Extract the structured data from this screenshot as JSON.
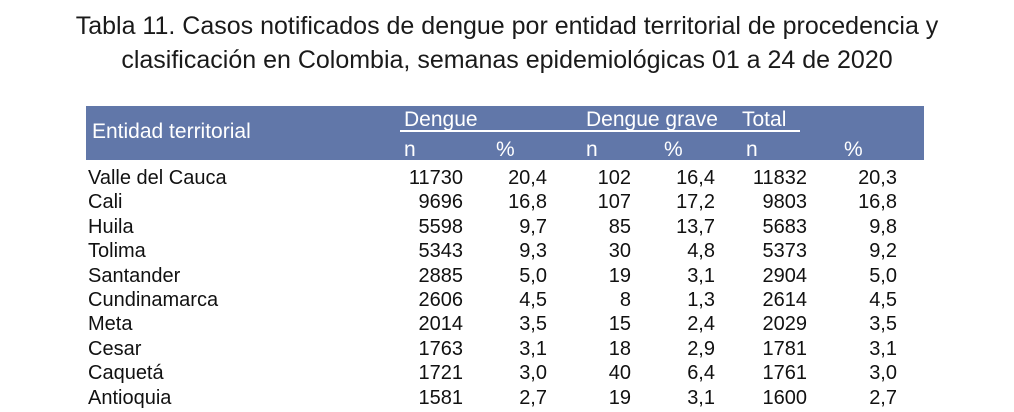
{
  "title": {
    "line1": "Tabla 11. Casos notificados de dengue por entidad territorial de procedencia y",
    "line2": "clasificación en Colombia, semanas epidemiológicas 01 a 24 de 2020"
  },
  "header": {
    "entity": "Entidad territorial",
    "dengue": "Dengue",
    "dengue_grave": "Dengue grave",
    "total": "Total",
    "n": "n",
    "pct": "%"
  },
  "rows": [
    [
      "Valle del Cauca",
      "11730",
      "20,4",
      "102",
      "16,4",
      "11832",
      "20,3"
    ],
    [
      "Cali",
      "9696",
      "16,8",
      "107",
      "17,2",
      "9803",
      "16,8"
    ],
    [
      "Huila",
      "5598",
      "9,7",
      "85",
      "13,7",
      "5683",
      "9,8"
    ],
    [
      "Tolima",
      "5343",
      "9,3",
      "30",
      "4,8",
      "5373",
      "9,2"
    ],
    [
      "Santander",
      "2885",
      "5,0",
      "19",
      "3,1",
      "2904",
      "5,0"
    ],
    [
      "Cundinamarca",
      "2606",
      "4,5",
      "8",
      "1,3",
      "2614",
      "4,5"
    ],
    [
      "Meta",
      "2014",
      "3,5",
      "15",
      "2,4",
      "2029",
      "3,5"
    ],
    [
      "Cesar",
      "1763",
      "3,1",
      "18",
      "2,9",
      "1781",
      "3,1"
    ],
    [
      "Caquetá",
      "1721",
      "3,0",
      "40",
      "6,4",
      "1761",
      "3,0"
    ],
    [
      "Antioquia",
      "1581",
      "2,7",
      "19",
      "3,1",
      "1600",
      "2,7"
    ]
  ]
}
